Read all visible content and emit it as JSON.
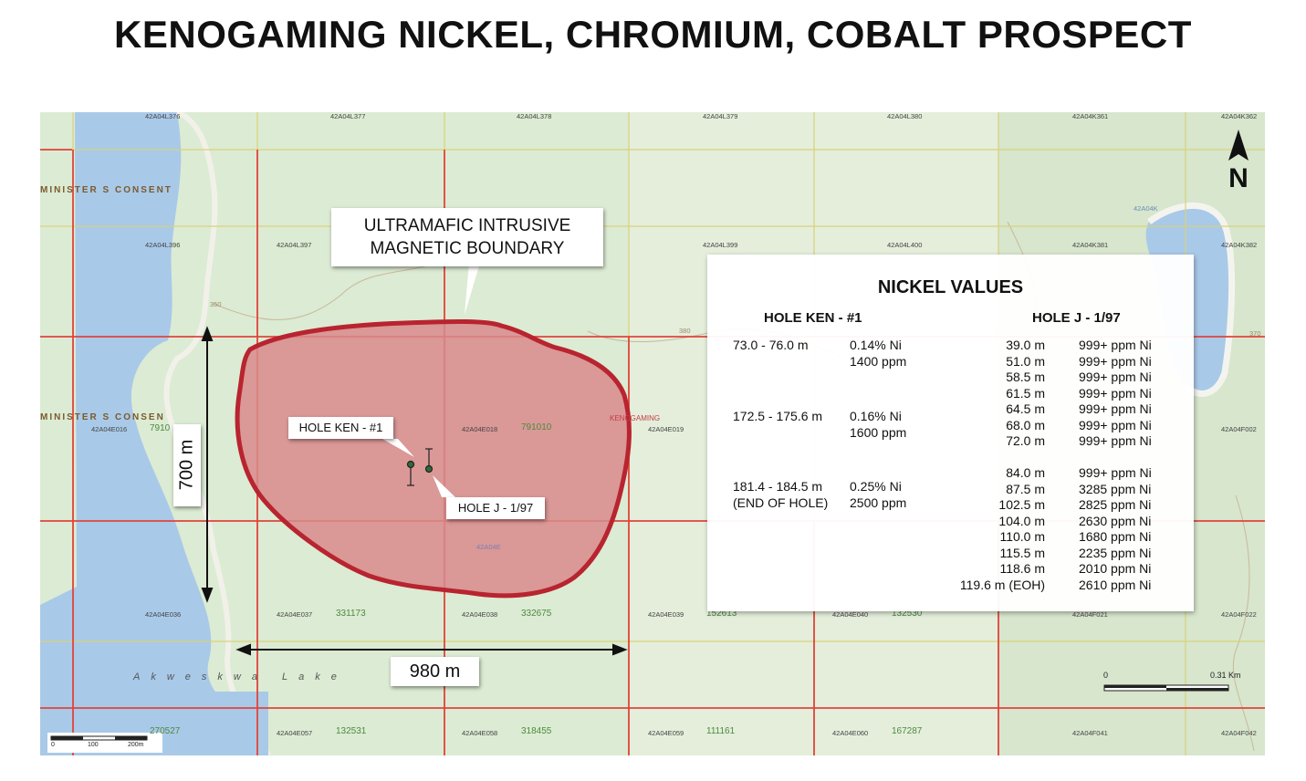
{
  "title": "KENOGAMING NICKEL, CHROMIUM, COBALT PROSPECT",
  "callouts": {
    "boundary_line1": "ULTRAMAFIC INTRUSIVE",
    "boundary_line2": "MAGNETIC BOUNDARY",
    "hole_ken": "HOLE KEN - #1",
    "hole_j": "HOLE J - 1/97",
    "dim_height": "700 m",
    "dim_width": "980 m"
  },
  "north_label": "N",
  "map_labels": {
    "claims_row1": [
      "42A04L376",
      "42A04L377",
      "42A04L378",
      "42A04L379",
      "42A04L380",
      "42A04K361",
      "42A04K362"
    ],
    "claims_row2": [
      "42A04L396",
      "42A04L397",
      "42A04L399",
      "42A04L400",
      "42A04K381",
      "42A04K382"
    ],
    "claims_row3": [
      "42A04E016",
      "42A04E018",
      "42A04E019",
      "42A04F002"
    ],
    "claims_row4": [
      "42A04E036",
      "42A04E037",
      "42A04E038",
      "42A04E039",
      "42A04E040",
      "42A04F021",
      "42A04F022"
    ],
    "claims_row5": [
      "42A04E057",
      "42A04E058",
      "42A04E059",
      "42A04E060",
      "42A04F041",
      "42A04F042"
    ],
    "claim_numbers": [
      "791010",
      "331173",
      "332675",
      "152613",
      "132530",
      "132531",
      "318455",
      "111161",
      "167287",
      "270527",
      "7910"
    ],
    "consent_1": "MINISTER S CONSENT",
    "consent_2": "MINISTER S CONSEN",
    "kenogaming": "KENOGAMING",
    "lake": "Akweskwa Lake",
    "contour_1": "350",
    "contour_2": "380",
    "contour_3": "370",
    "township_1": "42A04K",
    "township_2": "42A04E",
    "scale_left": [
      "0",
      "100",
      "200m"
    ],
    "scale_right": [
      "0",
      "0.31 Km"
    ]
  },
  "panel": {
    "title": "NICKEL VALUES",
    "col1_header": "HOLE KEN - #1",
    "col2_header": "HOLE J - 1/97",
    "ken_rows": [
      {
        "interval": "73.0 - 76.0 m",
        "note": "",
        "pct": "0.14% Ni",
        "ppm": "1400 ppm"
      },
      {
        "interval": "172.5 - 175.6 m",
        "note": "",
        "pct": "0.16% Ni",
        "ppm": "1600 ppm"
      },
      {
        "interval": "181.4 - 184.5 m",
        "note": "(END OF HOLE)",
        "pct": "0.25% Ni",
        "ppm": "2500 ppm"
      }
    ],
    "j_rows": [
      {
        "depth": "39.0 m",
        "value": "999+ ppm Ni"
      },
      {
        "depth": "51.0 m",
        "value": "999+ ppm Ni"
      },
      {
        "depth": "58.5 m",
        "value": "999+ ppm Ni"
      },
      {
        "depth": "61.5 m",
        "value": "999+ ppm Ni"
      },
      {
        "depth": "64.5 m",
        "value": "999+ ppm Ni"
      },
      {
        "depth": "68.0 m",
        "value": "999+ ppm Ni"
      },
      {
        "depth": "72.0 m",
        "value": "999+ ppm Ni"
      },
      {
        "depth": "84.0 m",
        "value": "999+ ppm Ni"
      },
      {
        "depth": "87.5 m",
        "value": "3285 ppm Ni"
      },
      {
        "depth": "102.5 m",
        "value": "2825 ppm Ni"
      },
      {
        "depth": "104.0 m",
        "value": "2630 ppm Ni"
      },
      {
        "depth": "110.0 m",
        "value": "1680 ppm Ni"
      },
      {
        "depth": "115.5 m",
        "value": "2235 ppm Ni"
      },
      {
        "depth": "118.6 m",
        "value": "2010 ppm Ni"
      },
      {
        "depth": "119.6 m (EOH)",
        "value": "2610 ppm Ni"
      }
    ]
  },
  "colors": {
    "intrusive_fill": "#d9898c",
    "intrusive_stroke": "#b8242f",
    "claim_red": "#e0443c",
    "claim_yellow": "#d8d27a",
    "lake": "#a9c9e8",
    "land": "#dcebd3"
  }
}
